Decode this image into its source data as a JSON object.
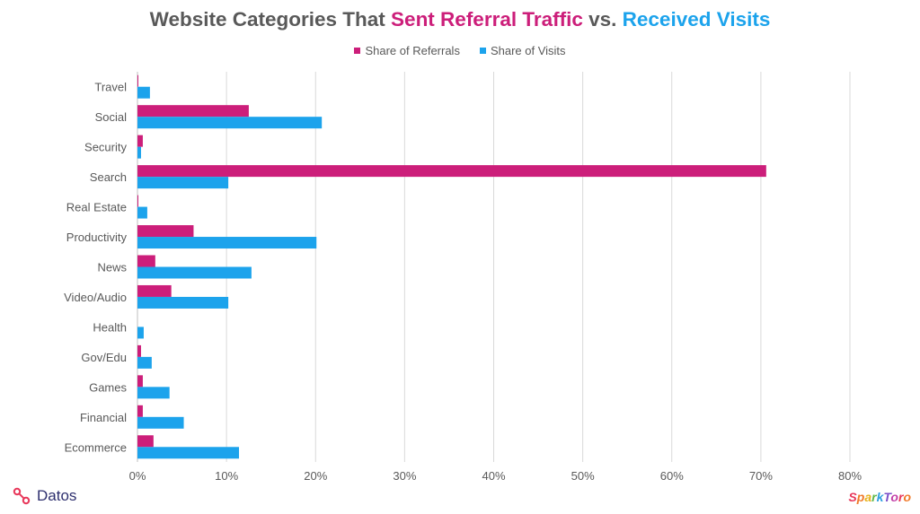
{
  "chart_data": {
    "type": "bar",
    "orientation": "horizontal",
    "title_parts": [
      {
        "text": "Website Categories That ",
        "color": "#595959"
      },
      {
        "text": "Sent Referral Traffic",
        "color": "#cc1e7a"
      },
      {
        "text": " vs. ",
        "color": "#595959"
      },
      {
        "text": "Received Visits",
        "color": "#1ca3ec"
      }
    ],
    "categories": [
      "Travel",
      "Social",
      "Security",
      "Search",
      "Real Estate",
      "Productivity",
      "News",
      "Video/Audio",
      "Health",
      "Gov/Edu",
      "Games",
      "Financial",
      "Ecommerce"
    ],
    "series": [
      {
        "name": "Share of Referrals",
        "color": "#cc1e7a",
        "values": [
          0.1,
          12.5,
          0.6,
          70.6,
          0.1,
          6.3,
          2.0,
          3.8,
          0.0,
          0.4,
          0.6,
          0.6,
          1.8
        ]
      },
      {
        "name": "Share of Visits",
        "color": "#1ca3ec",
        "values": [
          1.4,
          20.7,
          0.4,
          10.2,
          1.1,
          20.1,
          12.8,
          10.2,
          0.7,
          1.6,
          3.6,
          5.2,
          11.4
        ]
      }
    ],
    "xlim": [
      0,
      80
    ],
    "xticks": [
      "0%",
      "10%",
      "20%",
      "30%",
      "40%",
      "50%",
      "60%",
      "70%",
      "80%"
    ],
    "grid": true,
    "legend_position": "top-center"
  },
  "footer": {
    "left_logo_text": "Datos",
    "right_logo_text": "SparkToro"
  }
}
